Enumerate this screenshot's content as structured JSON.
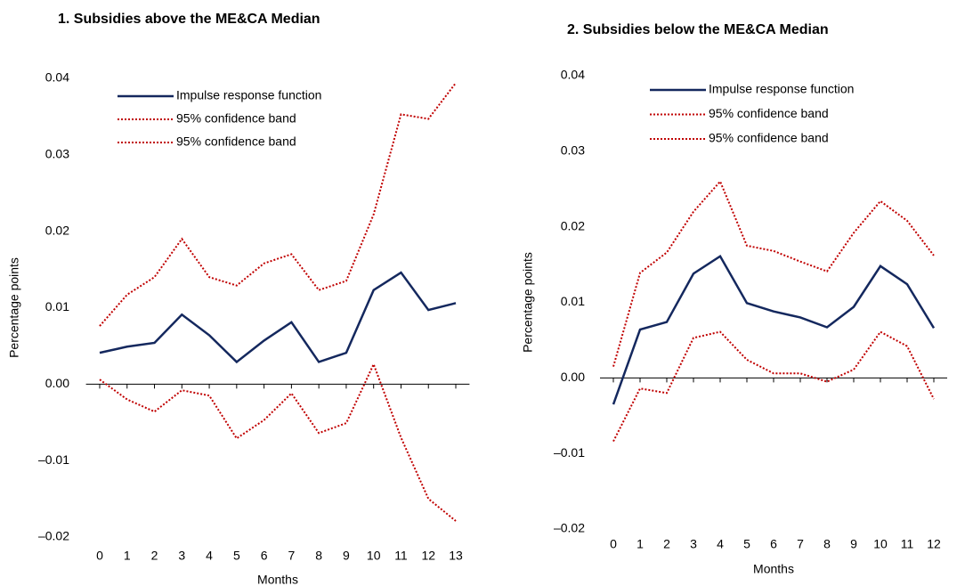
{
  "chart_data": [
    {
      "type": "line",
      "title": "1. Subsidies above the ME&CA Median",
      "x_label": "Months",
      "y_label": "Percentage points",
      "x": [
        0,
        1,
        2,
        3,
        4,
        5,
        6,
        7,
        8,
        9,
        10,
        11,
        12,
        13
      ],
      "xlim": [
        -0.5,
        13.5
      ],
      "xticks": [
        0,
        1,
        2,
        3,
        4,
        5,
        6,
        7,
        8,
        9,
        10,
        11,
        12,
        13
      ],
      "ylim": [
        -0.02,
        0.04
      ],
      "yticks": [
        {
          "value": -0.02,
          "label": "–0.02"
        },
        {
          "value": -0.01,
          "label": "–0.01"
        },
        {
          "value": 0,
          "label": "0.00"
        },
        0.01,
        0.02,
        0.03,
        0.04
      ],
      "series": [
        {
          "name": "Impulse response function",
          "color": "#14285e",
          "style": "solid",
          "values": [
            0.0041,
            0.0049,
            0.0054,
            0.0091,
            0.0064,
            0.0029,
            0.0057,
            0.0081,
            0.0029,
            0.0041,
            0.0123,
            0.0146,
            0.0097,
            0.0106
          ]
        },
        {
          "name": "95% confidence band",
          "color": "#c00000",
          "style": "dotted",
          "values": [
            0.0076,
            0.0117,
            0.014,
            0.019,
            0.014,
            0.0129,
            0.0158,
            0.017,
            0.0123,
            0.0135,
            0.0222,
            0.0353,
            0.0347,
            0.0394
          ]
        },
        {
          "name": "95% confidence band",
          "color": "#c00000",
          "style": "dotted",
          "values": [
            0.0006,
            -0.002,
            -0.0036,
            -0.0008,
            -0.0015,
            -0.0071,
            -0.0047,
            -0.0012,
            -0.0064,
            -0.0051,
            0.0026,
            -0.007,
            -0.015,
            -0.0179
          ]
        }
      ]
    },
    {
      "type": "line",
      "title": "2. Subsidies below the ME&CA Median",
      "x_label": "Months",
      "y_label": "Percentage points",
      "x": [
        0,
        1,
        2,
        3,
        4,
        5,
        6,
        7,
        8,
        9,
        10,
        11,
        12
      ],
      "xlim": [
        -0.5,
        12.5
      ],
      "xticks": [
        0,
        1,
        2,
        3,
        4,
        5,
        6,
        7,
        8,
        9,
        10,
        11,
        12
      ],
      "ylim": [
        -0.02,
        0.04
      ],
      "yticks": [
        {
          "value": -0.02,
          "label": "–0.02"
        },
        {
          "value": -0.01,
          "label": "–0.01"
        },
        {
          "value": 0,
          "label": "0.00"
        },
        0.01,
        0.02,
        0.03,
        0.04
      ],
      "series": [
        {
          "name": "Impulse response function",
          "color": "#14285e",
          "style": "solid",
          "values": [
            -0.0035,
            0.0064,
            0.0074,
            0.0138,
            0.0161,
            0.0099,
            0.0088,
            0.008,
            0.0067,
            0.0094,
            0.0148,
            0.0124,
            0.0066
          ]
        },
        {
          "name": "95% confidence band",
          "color": "#c00000",
          "style": "dotted",
          "values": [
            0.0015,
            0.0139,
            0.0166,
            0.022,
            0.026,
            0.0175,
            0.0168,
            0.0154,
            0.0141,
            0.0192,
            0.0234,
            0.0208,
            0.0162
          ]
        },
        {
          "name": "95% confidence band",
          "color": "#c00000",
          "style": "dotted",
          "values": [
            -0.0084,
            -0.0014,
            -0.002,
            0.0053,
            0.0061,
            0.0024,
            0.0006,
            0.0006,
            -0.0005,
            0.0011,
            0.0061,
            0.0042,
            -0.0028
          ]
        }
      ]
    }
  ]
}
